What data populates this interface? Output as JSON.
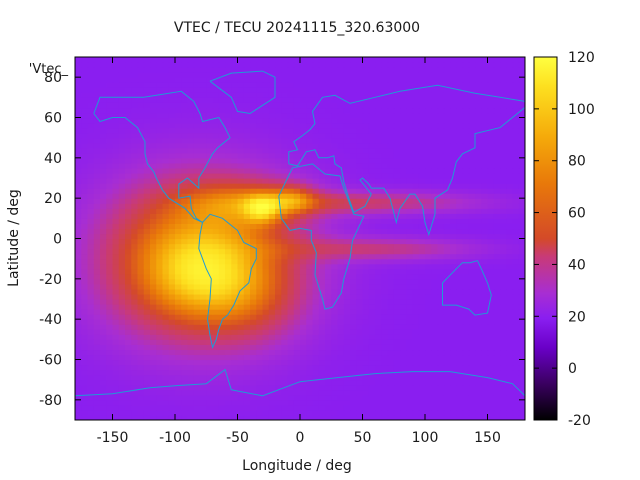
{
  "chart_data": {
    "type": "heatmap",
    "title": "VTEC / TECU 20241115_320.63000",
    "xlabel": "Longitude / deg",
    "ylabel": "Latitude / deg",
    "key_label": "'Vtec_",
    "xlim": [
      -180,
      180
    ],
    "ylim": [
      -90,
      90
    ],
    "xticks": [
      -150,
      -100,
      -50,
      0,
      50,
      100,
      150
    ],
    "yticks": [
      -80,
      -60,
      -40,
      -20,
      0,
      20,
      40,
      60,
      80
    ],
    "colorbar": {
      "range": [
        -20,
        120
      ],
      "ticks": [
        -20,
        0,
        20,
        40,
        60,
        80,
        100,
        120
      ],
      "colormap": [
        "#000000",
        "#3a0060",
        "#6a00c8",
        "#8a1ef0",
        "#a82ed2",
        "#c83a78",
        "#d44a28",
        "#e8780a",
        "#f5aa0a",
        "#fde020",
        "#ffff40"
      ]
    },
    "background_vtec": 22,
    "features": [
      {
        "name": "American crest",
        "center_lon": -80,
        "center_lat": -10,
        "sigma_lon": 55,
        "sigma_lat": 28,
        "amplitude": 70
      },
      {
        "name": "Southern crest",
        "center_lon": -80,
        "center_lat": -18,
        "sigma_lon": 30,
        "sigma_lat": 14,
        "amplitude": 20
      },
      {
        "name": "Northern crest",
        "center_lon": -40,
        "center_lat": 18,
        "sigma_lon": 35,
        "sigma_lat": 8,
        "amplitude": 25
      },
      {
        "name": "Northern band east",
        "center_lon": 55,
        "center_lat": 18,
        "sigma_lon": 65,
        "sigma_lat": 4,
        "amplitude": 28
      },
      {
        "name": "Southern band east",
        "center_lon": 65,
        "center_lat": -5,
        "sigma_lon": 55,
        "sigma_lat": 4,
        "amplitude": 25
      },
      {
        "name": "Peak",
        "center_lon": -30,
        "center_lat": 15,
        "sigma_lon": 10,
        "sigma_lat": 5,
        "amplitude": 35
      },
      {
        "name": "West Africa peak",
        "center_lon": -5,
        "center_lat": 20,
        "sigma_lon": 12,
        "sigma_lat": 5,
        "amplitude": 25
      },
      {
        "name": "Low latitude south Atlantic",
        "center_lon": -40,
        "center_lat": -30,
        "sigma_lon": 30,
        "sigma_lat": 15,
        "amplitude": 15
      }
    ],
    "coastlines": [
      {
        "name": "North America",
        "points": [
          [
            -165,
            62
          ],
          [
            -160,
            70
          ],
          [
            -140,
            70
          ],
          [
            -125,
            70
          ],
          [
            -95,
            73
          ],
          [
            -85,
            68
          ],
          [
            -80,
            62
          ],
          [
            -78,
            58
          ],
          [
            -65,
            60
          ],
          [
            -60,
            55
          ],
          [
            -56,
            50
          ],
          [
            -66,
            45
          ],
          [
            -70,
            42
          ],
          [
            -76,
            35
          ],
          [
            -81,
            30
          ],
          [
            -81,
            25
          ],
          [
            -90,
            30
          ],
          [
            -97,
            27
          ],
          [
            -97,
            20
          ],
          [
            -88,
            21
          ],
          [
            -87,
            15
          ],
          [
            -83,
            10
          ],
          [
            -78,
            8
          ],
          [
            -85,
            10
          ],
          [
            -92,
            15
          ],
          [
            -105,
            20
          ],
          [
            -110,
            24
          ],
          [
            -115,
            30
          ],
          [
            -117,
            33
          ],
          [
            -122,
            37
          ],
          [
            -124,
            42
          ],
          [
            -124,
            48
          ],
          [
            -130,
            55
          ],
          [
            -140,
            60
          ],
          [
            -150,
            60
          ],
          [
            -160,
            58
          ],
          [
            -165,
            62
          ]
        ]
      },
      {
        "name": "South America",
        "points": [
          [
            -78,
            8
          ],
          [
            -72,
            12
          ],
          [
            -62,
            10
          ],
          [
            -50,
            4
          ],
          [
            -45,
            -2
          ],
          [
            -35,
            -5
          ],
          [
            -35,
            -10
          ],
          [
            -39,
            -15
          ],
          [
            -41,
            -22
          ],
          [
            -48,
            -26
          ],
          [
            -53,
            -33
          ],
          [
            -58,
            -38
          ],
          [
            -62,
            -40
          ],
          [
            -65,
            -45
          ],
          [
            -67,
            -50
          ],
          [
            -70,
            -54
          ],
          [
            -72,
            -48
          ],
          [
            -74,
            -40
          ],
          [
            -72,
            -30
          ],
          [
            -71,
            -20
          ],
          [
            -75,
            -15
          ],
          [
            -81,
            -5
          ],
          [
            -80,
            2
          ],
          [
            -78,
            8
          ]
        ]
      },
      {
        "name": "Greenland",
        "points": [
          [
            -72,
            78
          ],
          [
            -55,
            82
          ],
          [
            -30,
            83
          ],
          [
            -20,
            80
          ],
          [
            -20,
            70
          ],
          [
            -40,
            62
          ],
          [
            -50,
            63
          ],
          [
            -55,
            70
          ],
          [
            -72,
            78
          ]
        ]
      },
      {
        "name": "Africa",
        "points": [
          [
            -17,
            21
          ],
          [
            -10,
            30
          ],
          [
            -6,
            35
          ],
          [
            10,
            37
          ],
          [
            20,
            32
          ],
          [
            32,
            31
          ],
          [
            35,
            25
          ],
          [
            43,
            12
          ],
          [
            51,
            11
          ],
          [
            42,
            -1
          ],
          [
            40,
            -10
          ],
          [
            35,
            -20
          ],
          [
            33,
            -27
          ],
          [
            26,
            -34
          ],
          [
            20,
            -35
          ],
          [
            18,
            -30
          ],
          [
            12,
            -18
          ],
          [
            13,
            -7
          ],
          [
            9,
            -1
          ],
          [
            9,
            4
          ],
          [
            0,
            5
          ],
          [
            -8,
            4
          ],
          [
            -15,
            10
          ],
          [
            -17,
            21
          ]
        ]
      },
      {
        "name": "Eurasia",
        "points": [
          [
            -9,
            37
          ],
          [
            -9,
            43
          ],
          [
            -2,
            44
          ],
          [
            -5,
            48
          ],
          [
            2,
            51
          ],
          [
            8,
            54
          ],
          [
            12,
            57
          ],
          [
            10,
            63
          ],
          [
            18,
            70
          ],
          [
            28,
            71
          ],
          [
            40,
            67
          ],
          [
            60,
            70
          ],
          [
            80,
            73
          ],
          [
            110,
            76
          ],
          [
            140,
            72
          ],
          [
            160,
            70
          ],
          [
            180,
            68
          ],
          [
            180,
            65
          ],
          [
            170,
            60
          ],
          [
            160,
            55
          ],
          [
            140,
            52
          ],
          [
            140,
            45
          ],
          [
            130,
            42
          ],
          [
            125,
            38
          ],
          [
            122,
            30
          ],
          [
            118,
            24
          ],
          [
            108,
            20
          ],
          [
            108,
            12
          ],
          [
            103,
            2
          ],
          [
            100,
            8
          ],
          [
            98,
            16
          ],
          [
            92,
            22
          ],
          [
            88,
            22
          ],
          [
            80,
            15
          ],
          [
            77,
            8
          ],
          [
            72,
            20
          ],
          [
            67,
            25
          ],
          [
            57,
            25
          ],
          [
            55,
            27
          ],
          [
            50,
            30
          ],
          [
            48,
            29
          ],
          [
            57,
            22
          ],
          [
            52,
            16
          ],
          [
            43,
            13
          ],
          [
            39,
            20
          ],
          [
            35,
            28
          ],
          [
            33,
            35
          ],
          [
            28,
            37
          ],
          [
            27,
            41
          ],
          [
            22,
            40
          ],
          [
            15,
            40
          ],
          [
            12,
            44
          ],
          [
            5,
            43
          ],
          [
            -2,
            36
          ],
          [
            -9,
            37
          ]
        ]
      },
      {
        "name": "Australia",
        "points": [
          [
            114,
            -22
          ],
          [
            114,
            -33
          ],
          [
            125,
            -33
          ],
          [
            135,
            -35
          ],
          [
            140,
            -38
          ],
          [
            150,
            -37
          ],
          [
            153,
            -28
          ],
          [
            150,
            -22
          ],
          [
            145,
            -15
          ],
          [
            142,
            -11
          ],
          [
            136,
            -12
          ],
          [
            130,
            -12
          ],
          [
            125,
            -15
          ],
          [
            114,
            -22
          ]
        ]
      },
      {
        "name": "Antarctica",
        "points": [
          [
            -180,
            -78
          ],
          [
            -150,
            -77
          ],
          [
            -120,
            -74
          ],
          [
            -100,
            -73
          ],
          [
            -75,
            -72
          ],
          [
            -60,
            -65
          ],
          [
            -55,
            -75
          ],
          [
            -30,
            -78
          ],
          [
            0,
            -71
          ],
          [
            30,
            -69
          ],
          [
            60,
            -67
          ],
          [
            90,
            -66
          ],
          [
            120,
            -66
          ],
          [
            150,
            -69
          ],
          [
            170,
            -72
          ],
          [
            180,
            -78
          ]
        ]
      }
    ]
  }
}
